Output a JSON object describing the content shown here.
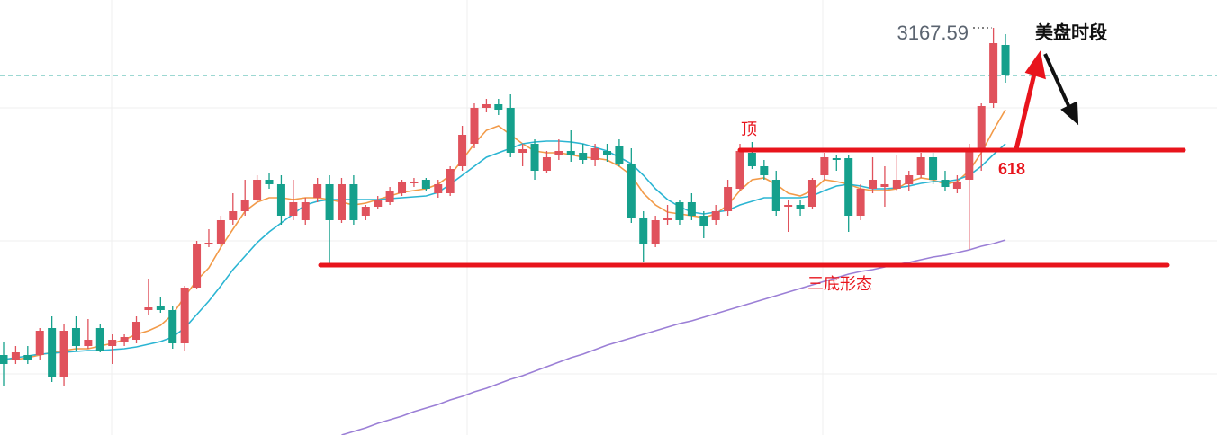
{
  "chart_data": {
    "type": "candlestick",
    "ylim": [
      2986.4,
      3180
    ],
    "up_color": "#e0525c",
    "down_color": "#15a08c",
    "open": [
      3022,
      3020,
      3022,
      3022,
      3034,
      3012,
      3034,
      3026,
      3034,
      3026,
      3028,
      3028.8,
      3042,
      3044,
      3042,
      3027.2,
      3052,
      3071.2,
      3071.2,
      3082,
      3086,
      3091.2,
      3100,
      3098,
      3084,
      3082,
      3092,
      3098,
      3082,
      3098,
      3084,
      3088,
      3090,
      3094,
      3098.4,
      3100,
      3094,
      3094,
      3106,
      3116,
      3132,
      3133.6,
      3132,
      3112,
      3116,
      3104,
      3111.2,
      3112.8,
      3112,
      3108.8,
      3112.8,
      3115.2,
      3107.2,
      3082.8,
      3071.2,
      3082,
      3090,
      3090,
      3084,
      3082,
      3086,
      3096,
      3112,
      3106,
      3100,
      3088,
      3088.8,
      3088,
      3102,
      3109.6,
      3109.6,
      3084,
      3096,
      3096.8,
      3096,
      3098,
      3102,
      3110,
      3100,
      3096,
      3100,
      3114,
      3134,
      3160
    ],
    "high": [
      3028,
      3026,
      3026,
      3034,
      3039.2,
      3036,
      3039.2,
      3038,
      3036,
      3031.2,
      3031.2,
      3039.2,
      3056,
      3048,
      3044,
      3052.8,
      3072.8,
      3078,
      3084,
      3094,
      3100,
      3102,
      3103.2,
      3102,
      3100,
      3092,
      3100.8,
      3102,
      3100.8,
      3102,
      3088.8,
      3092.8,
      3096.8,
      3100,
      3100.8,
      3100.8,
      3100,
      3106,
      3124,
      3134,
      3136,
      3136,
      3138,
      3116,
      3118,
      3112.8,
      3118,
      3122,
      3116,
      3116,
      3116,
      3118,
      3114,
      3086,
      3084,
      3088.8,
      3091.2,
      3094,
      3086,
      3088.8,
      3100,
      3116,
      3116.8,
      3108.8,
      3104,
      3091.2,
      3091.2,
      3100.8,
      3112,
      3111.2,
      3111.2,
      3098,
      3110,
      3106,
      3111.2,
      3104,
      3112,
      3112,
      3104,
      3102,
      3116,
      3134,
      3167.59,
      3164.8
    ],
    "low": [
      3008,
      3018,
      3018,
      3020,
      3010,
      3008,
      3024,
      3024.8,
      3023.2,
      3018,
      3026,
      3027.2,
      3040,
      3040.8,
      3024.8,
      3024,
      3051.2,
      3070,
      3070,
      3080,
      3084,
      3090,
      3096,
      3080,
      3082,
      3080,
      3090,
      3062,
      3080.8,
      3080,
      3082,
      3087.2,
      3088.8,
      3092.8,
      3096.8,
      3095.2,
      3092,
      3092.8,
      3104,
      3114,
      3130,
      3128.8,
      3110,
      3106,
      3100,
      3103.2,
      3108.8,
      3108,
      3107.2,
      3106,
      3108,
      3106,
      3080.8,
      3063.2,
      3070,
      3080,
      3080,
      3082,
      3074,
      3080,
      3084,
      3095.2,
      3104.8,
      3100,
      3084,
      3076.8,
      3084,
      3087.2,
      3100,
      3104,
      3076.8,
      3082,
      3094,
      3088,
      3095.2,
      3095.2,
      3100.8,
      3098,
      3095.2,
      3094,
      3069.2,
      3104,
      3132,
      3143.2
    ],
    "close": [
      3018,
      3023.2,
      3020,
      3032.8,
      3012,
      3032.8,
      3026,
      3028.8,
      3024,
      3028.8,
      3030,
      3036.8,
      3043.2,
      3042,
      3027.2,
      3052,
      3071.2,
      3072,
      3082,
      3086,
      3091.2,
      3100,
      3098,
      3084,
      3090,
      3090,
      3098,
      3082,
      3098,
      3082,
      3088,
      3091.2,
      3095.2,
      3098.8,
      3099.2,
      3096,
      3098,
      3104.8,
      3120,
      3132,
      3133.6,
      3131.2,
      3112,
      3113.6,
      3104,
      3110,
      3112.8,
      3111.2,
      3108.8,
      3114,
      3111.2,
      3107.2,
      3082.8,
      3071.2,
      3082,
      3083.2,
      3082,
      3084,
      3079.2,
      3086,
      3096.8,
      3112.8,
      3106,
      3102,
      3086,
      3088.8,
      3087.2,
      3100,
      3110,
      3108.8,
      3084,
      3096,
      3100,
      3098,
      3100,
      3102,
      3110,
      3100,
      3096.8,
      3099.2,
      3114,
      3132.8,
      3160.8,
      3146.4
    ],
    "series": [
      {
        "color": "#f29a48",
        "values": [
          3020,
          3020,
          3020.8,
          3022,
          3023.2,
          3024,
          3024.8,
          3024.8,
          3026,
          3027.2,
          3028.8,
          3031.2,
          3032.8,
          3035.2,
          3040,
          3048,
          3055.2,
          3060.8,
          3070,
          3078,
          3086,
          3090,
          3092,
          3092,
          3091.2,
          3092,
          3092,
          3091.2,
          3090,
          3088.8,
          3089.6,
          3091.2,
          3092.8,
          3094.4,
          3095.2,
          3096,
          3098,
          3102,
          3108.8,
          3116,
          3122,
          3124,
          3120,
          3116,
          3112.8,
          3112,
          3112,
          3111.2,
          3110,
          3109.6,
          3108.8,
          3106,
          3102,
          3094,
          3088.8,
          3085.6,
          3084.8,
          3084,
          3083.2,
          3084.8,
          3088.8,
          3095.2,
          3100,
          3100.8,
          3098,
          3094,
          3092.8,
          3095.2,
          3100,
          3099.2,
          3098,
          3096,
          3095.2,
          3095.2,
          3096,
          3099.2,
          3100.8,
          3100,
          3098,
          3099.2,
          3104,
          3112,
          3122,
          3131.2
        ]
      },
      {
        "color": "#2bb5d3",
        "values": [
          3020,
          3020.8,
          3021.6,
          3022.4,
          3022.8,
          3023.2,
          3023.6,
          3024,
          3024,
          3024.4,
          3024.8,
          3025.6,
          3026.8,
          3028,
          3030,
          3034,
          3040,
          3046,
          3052.8,
          3060,
          3066,
          3072,
          3076.8,
          3080.8,
          3084.8,
          3088.8,
          3090.4,
          3091.2,
          3091.2,
          3091.2,
          3091.2,
          3091.2,
          3091.6,
          3092,
          3092.4,
          3092.8,
          3094.4,
          3098,
          3102,
          3106,
          3110,
          3112,
          3114,
          3116,
          3116.8,
          3117.2,
          3117.2,
          3116.8,
          3116,
          3114.4,
          3112.8,
          3110,
          3107.2,
          3102,
          3096,
          3091.2,
          3088,
          3085.6,
          3084.8,
          3085.6,
          3086.4,
          3088.8,
          3090.4,
          3092,
          3092,
          3092,
          3092,
          3092.8,
          3095.2,
          3097.2,
          3098,
          3097.2,
          3096,
          3096,
          3096.4,
          3097.2,
          3098.4,
          3099.2,
          3099.2,
          3100,
          3102,
          3106,
          3111.2,
          3116
        ]
      },
      {
        "color": "#9b7fd6",
        "values": [
          null,
          null,
          null,
          null,
          null,
          null,
          null,
          null,
          null,
          null,
          null,
          null,
          null,
          null,
          null,
          null,
          null,
          null,
          null,
          null,
          null,
          null,
          null,
          null,
          null,
          null,
          null,
          null,
          2986.4,
          2988,
          2989.6,
          2991.6,
          2993.2,
          2994.8,
          2996.8,
          2998.4,
          3000,
          3002,
          3003.6,
          3005.6,
          3007.2,
          3009.2,
          3011.2,
          3012.8,
          3014.8,
          3016.8,
          3018.8,
          3020.8,
          3022.4,
          3024.4,
          3026.4,
          3028,
          3029.6,
          3031.2,
          3032.8,
          3034.4,
          3036,
          3037.2,
          3038.8,
          3040.4,
          3042,
          3043.6,
          3045.2,
          3046.8,
          3048.4,
          3050,
          3051.6,
          3053.2,
          3054.8,
          3056.4,
          3058,
          3059.2,
          3060,
          3061.2,
          3062.4,
          3063.2,
          3064.4,
          3065.6,
          3066.4,
          3067.6,
          3068.8,
          3070.4,
          3071.6,
          3073.2
        ]
      }
    ],
    "resistance": 3113.2,
    "support": 3062,
    "level_color": "#e8141c",
    "annotations": {
      "top": "顶",
      "fib": "618",
      "pattern": "三底形态",
      "session": "美盘时段"
    }
  }
}
